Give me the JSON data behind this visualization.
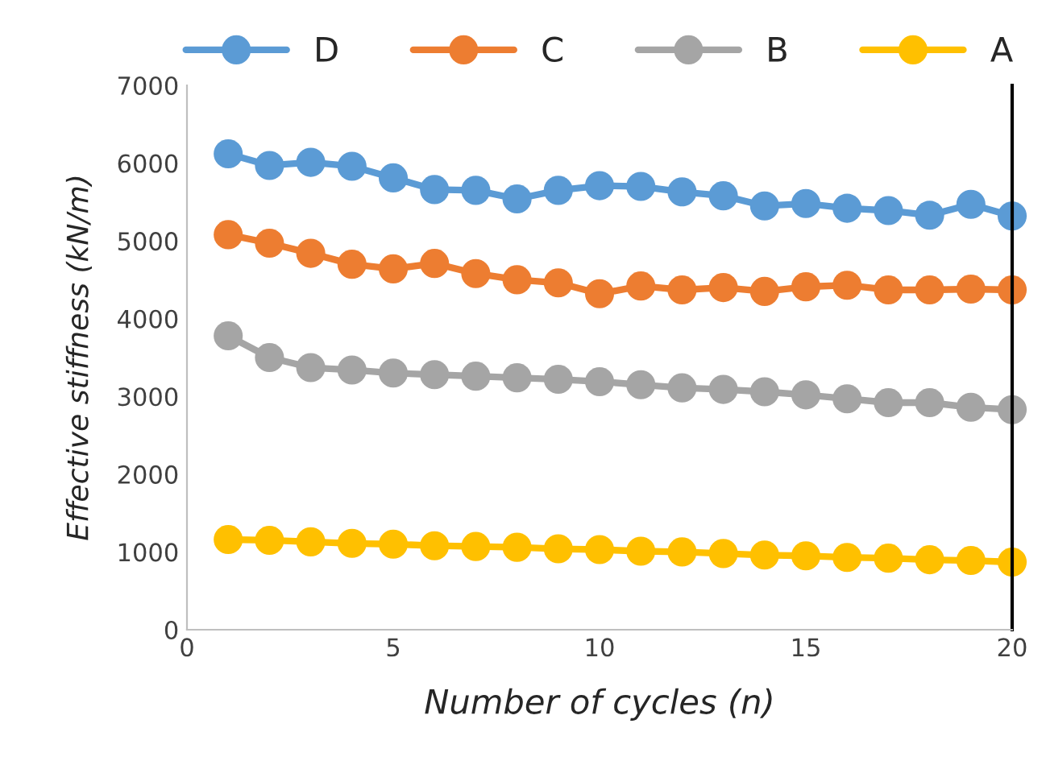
{
  "chart_data": {
    "type": "line",
    "xlabel": "Number of cycles (n)",
    "ylabel": "Effective stiffness (kN/m)",
    "x": [
      1,
      2,
      3,
      4,
      5,
      6,
      7,
      8,
      9,
      10,
      11,
      12,
      13,
      14,
      15,
      16,
      17,
      18,
      19,
      20
    ],
    "series": [
      {
        "name": "D",
        "color": "#5b9bd5",
        "values": [
          6120,
          5970,
          6010,
          5960,
          5810,
          5660,
          5650,
          5540,
          5650,
          5710,
          5700,
          5630,
          5580,
          5450,
          5480,
          5420,
          5390,
          5330,
          5470,
          5320
        ]
      },
      {
        "name": "C",
        "color": "#ed7d31",
        "values": [
          5080,
          4970,
          4840,
          4700,
          4640,
          4710,
          4580,
          4500,
          4460,
          4320,
          4420,
          4370,
          4400,
          4350,
          4410,
          4430,
          4370,
          4370,
          4380,
          4370
        ]
      },
      {
        "name": "B",
        "color": "#a5a5a5",
        "values": [
          3780,
          3500,
          3370,
          3340,
          3300,
          3280,
          3260,
          3240,
          3220,
          3190,
          3150,
          3110,
          3090,
          3060,
          3020,
          2970,
          2920,
          2920,
          2860,
          2830
        ]
      },
      {
        "name": "A",
        "color": "#ffc000",
        "values": [
          1160,
          1150,
          1130,
          1110,
          1100,
          1080,
          1070,
          1060,
          1040,
          1030,
          1010,
          1000,
          980,
          960,
          950,
          930,
          920,
          900,
          890,
          870
        ]
      }
    ],
    "xlim": [
      0,
      20
    ],
    "xticks": [
      0,
      5,
      10,
      15,
      20
    ],
    "ylim": [
      0,
      7000
    ],
    "yticks": [
      0,
      1000,
      2000,
      3000,
      4000,
      5000,
      6000,
      7000
    ],
    "grid": false,
    "legend": "top",
    "marker": "circle",
    "line_style": "solid"
  }
}
